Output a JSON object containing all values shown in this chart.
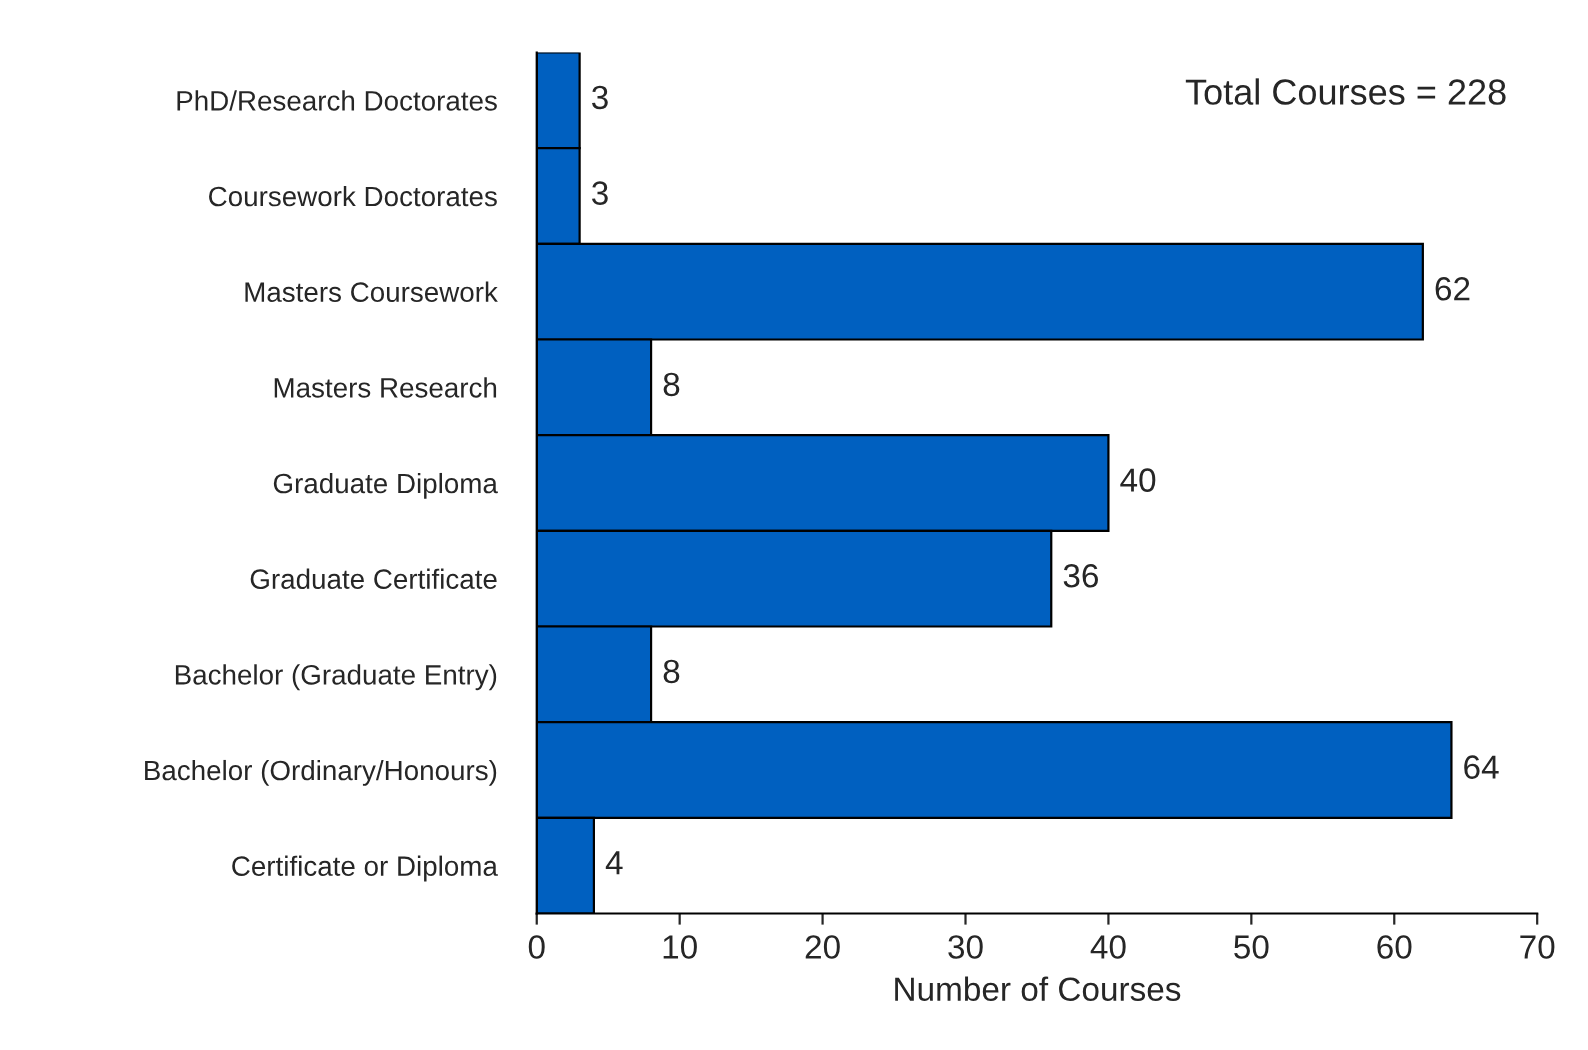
{
  "chart_data": {
    "type": "bar",
    "orientation": "horizontal",
    "xlabel": "Number of Courses",
    "categories": [
      "PhD/Research Doctorates",
      "Coursework Doctorates",
      "Masters Coursework",
      "Masters Research",
      "Graduate Diploma",
      "Graduate Certificate",
      "Bachelor (Graduate Entry)",
      "Bachelor (Ordinary/Honours)",
      "Certificate or Diploma"
    ],
    "values": [
      3,
      3,
      62,
      8,
      40,
      36,
      8,
      64,
      4
    ],
    "color": "#0060c0",
    "xlim": [
      0,
      70
    ],
    "xticks": [
      0,
      10,
      20,
      30,
      40,
      50,
      60,
      70
    ],
    "grid": false,
    "legend": false,
    "data_labels": true,
    "annotations": [
      "Total Courses = 228"
    ]
  }
}
